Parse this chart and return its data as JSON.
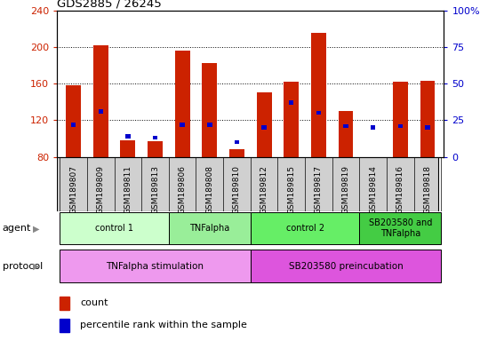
{
  "title": "GDS2885 / 26245",
  "samples": [
    "GSM189807",
    "GSM189809",
    "GSM189811",
    "GSM189813",
    "GSM189806",
    "GSM189808",
    "GSM189810",
    "GSM189812",
    "GSM189815",
    "GSM189817",
    "GSM189819",
    "GSM189814",
    "GSM189816",
    "GSM189818"
  ],
  "counts": [
    158,
    202,
    98,
    97,
    196,
    182,
    88,
    150,
    162,
    215,
    130,
    80,
    162,
    163
  ],
  "percentile_ranks": [
    22,
    31,
    14,
    13,
    22,
    22,
    10,
    20,
    37,
    30,
    21,
    20,
    21,
    20
  ],
  "y_min": 80,
  "y_max": 240,
  "y_ticks_left": [
    80,
    120,
    160,
    200,
    240
  ],
  "y_ticks_right": [
    0,
    25,
    50,
    75,
    100
  ],
  "agent_groups": [
    {
      "label": "control 1",
      "start": 0,
      "end": 4,
      "color": "#ccffcc"
    },
    {
      "label": "TNFalpha",
      "start": 4,
      "end": 7,
      "color": "#99ee99"
    },
    {
      "label": "control 2",
      "start": 7,
      "end": 11,
      "color": "#66ee66"
    },
    {
      "label": "SB203580 and\nTNFalpha",
      "start": 11,
      "end": 14,
      "color": "#44cc44"
    }
  ],
  "protocol_groups": [
    {
      "label": "TNFalpha stimulation",
      "start": 0,
      "end": 7,
      "color": "#ee99ee"
    },
    {
      "label": "SB203580 preincubation",
      "start": 7,
      "end": 14,
      "color": "#dd55dd"
    }
  ],
  "bar_color": "#cc2200",
  "percentile_color": "#0000cc",
  "background_color": "#ffffff",
  "tick_label_color_left": "#cc2200",
  "tick_label_color_right": "#0000cc",
  "label_left_agent": "agent",
  "label_left_protocol": "protocol",
  "legend_count": "count",
  "legend_percentile": "percentile rank within the sample"
}
